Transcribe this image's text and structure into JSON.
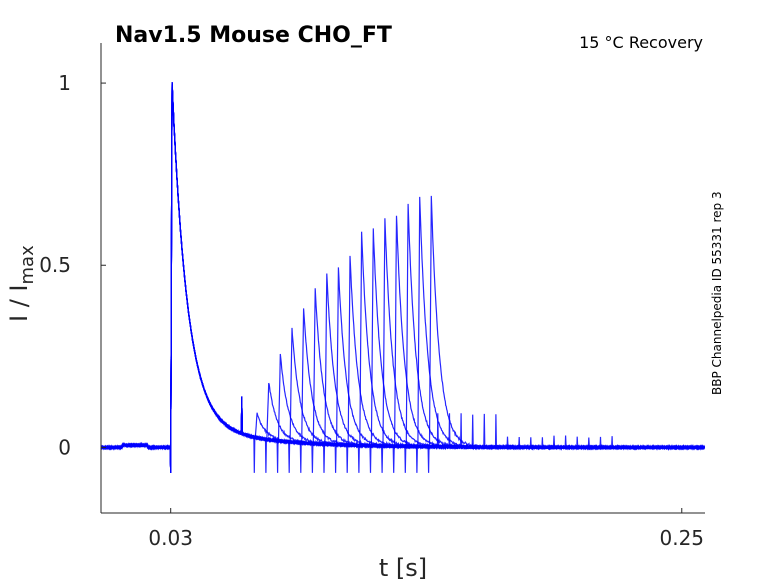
{
  "chart_data": {
    "type": "line",
    "title": "Nav1.5  Mouse  CHO_FT",
    "condition": "15 °C  Recovery",
    "side_label": "BBP Channelpedia ID 55331 rep 3",
    "xlabel": "t [s]",
    "ylabel": "I / I",
    "ylabel_sub": "max",
    "xlim": [
      0.0,
      0.26
    ],
    "ylim": [
      -0.18,
      1.11
    ],
    "xticks": [
      {
        "value": 0.03,
        "label": "0.03"
      },
      {
        "value": 0.25,
        "label": "0.25"
      }
    ],
    "yticks": [
      {
        "value": 0,
        "label": "0"
      },
      {
        "value": 0.5,
        "label": "0.5"
      },
      {
        "value": 1,
        "label": "1"
      }
    ],
    "grid": false,
    "color": "#0000ff",
    "conditioning_pulse": {
      "t": 0.03,
      "peak": 1.0,
      "tau": 0.0065
    },
    "recovery_pulses": {
      "t": [
        0.066,
        0.071,
        0.076,
        0.081,
        0.086,
        0.091,
        0.096,
        0.101,
        0.106,
        0.111,
        0.116,
        0.121,
        0.126,
        0.131,
        0.136,
        0.141
      ],
      "peak": [
        0.066,
        0.158,
        0.238,
        0.314,
        0.372,
        0.426,
        0.467,
        0.486,
        0.519,
        0.587,
        0.598,
        0.628,
        0.634,
        0.664,
        0.686,
        0.686
      ],
      "tau": 0.0035
    }
  }
}
